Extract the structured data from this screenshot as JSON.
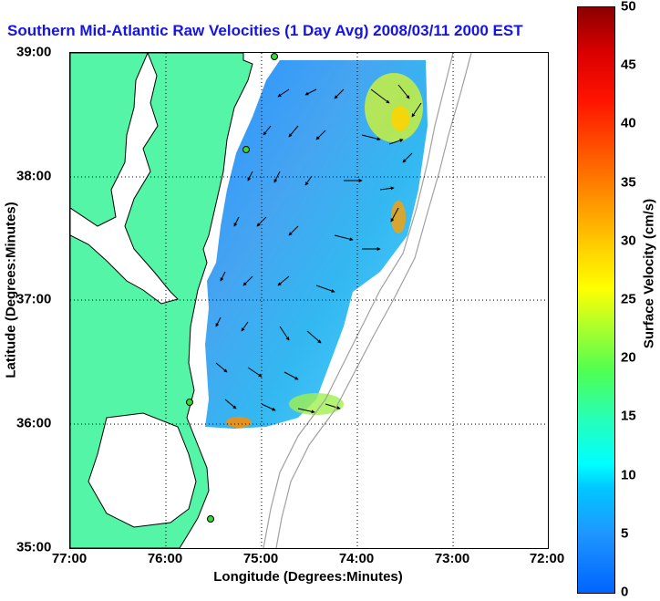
{
  "title": "Southern Mid-Atlantic Raw Velocities (1 Day Avg) 2008/03/11 2000 EST",
  "map": {
    "x_axis": {
      "label": "Longitude (Degrees:Minutes)",
      "ticks": [
        "77:00",
        "76:00",
        "75:00",
        "74:00",
        "73:00",
        "72:00"
      ],
      "range": [
        -77,
        -72
      ]
    },
    "y_axis": {
      "label": "Latitude (Degrees:Minutes)",
      "ticks": [
        "39:00",
        "38:00",
        "37:00",
        "36:00",
        "35:00"
      ],
      "range": [
        35,
        39
      ]
    },
    "grid": "dotted",
    "land_color": "#55f5a8",
    "coast_color": "#000000",
    "bathymetry_color": "#a0a0a0"
  },
  "colorbar": {
    "label": "Surface Velocity (cm/s)",
    "ticks": [
      "50",
      "45",
      "40",
      "35",
      "30",
      "25",
      "20",
      "15",
      "10",
      "5",
      "0"
    ],
    "range": [
      0,
      50
    ],
    "colormap": "jet"
  }
}
